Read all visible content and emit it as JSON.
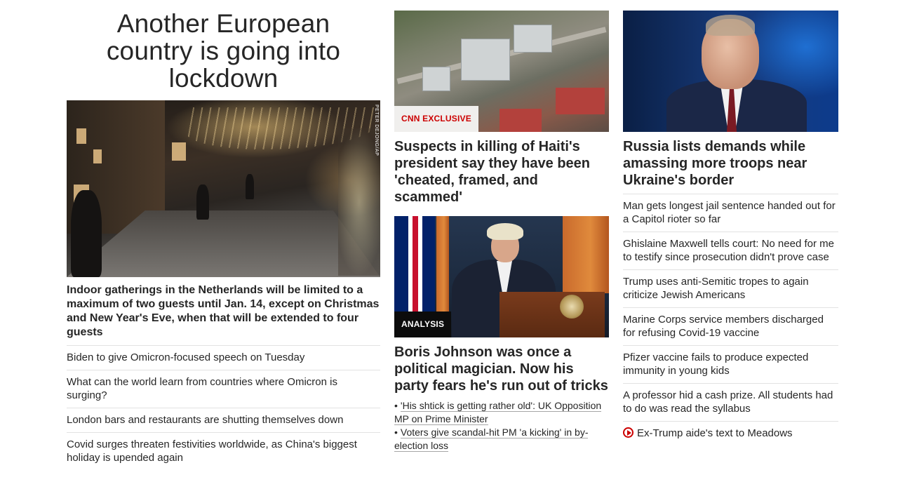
{
  "column1": {
    "headline": "Another European country is going into lockdown",
    "image_credit": "PETER DEJONG/AP",
    "description": "Indoor gatherings in the Netherlands will be limited to a maximum of two guests until Jan. 14, except on Christmas and New Year's Eve, when that will be extended to four guests",
    "links": [
      "Biden to give Omicron-focused speech on Tuesday",
      "What can the world learn from countries where Omicron is surging?",
      "London bars and restaurants are shutting themselves down",
      "Covid surges threaten festivities worldwide, as China's biggest holiday is upended again"
    ]
  },
  "column2": {
    "story1": {
      "label": "CNN EXCLUSIVE",
      "title": "Suspects in killing of Haiti's president say they have been 'cheated, framed, and scammed'"
    },
    "story2": {
      "label": "ANALYSIS",
      "title": "Boris Johnson was once a political magician. Now his party fears he's run out of tricks",
      "sublinks": [
        "'His shtick is getting rather old': UK Opposition MP on Prime Minister",
        "Voters give scandal-hit PM 'a kicking' in by-election loss"
      ]
    }
  },
  "column3": {
    "title": "Russia lists demands while amassing more troops near Ukraine's border",
    "links": [
      "Man gets longest jail sentence handed out for a Capitol rioter so far",
      "Ghislaine Maxwell tells court: No need for me to testify since prosecution didn't prove case",
      "Trump uses anti-Semitic tropes to again criticize Jewish Americans",
      "Marine Corps service members discharged for refusing Covid-19 vaccine",
      "Pfizer vaccine fails to produce expected immunity in young kids",
      "A professor hid a cash prize. All students had to do was read the syllabus"
    ],
    "video_link": "Ex-Trump aide's text to Meadows"
  },
  "colors": {
    "accent_red": "#cc0000",
    "text": "#262626",
    "divider": "#e2e2e2"
  }
}
